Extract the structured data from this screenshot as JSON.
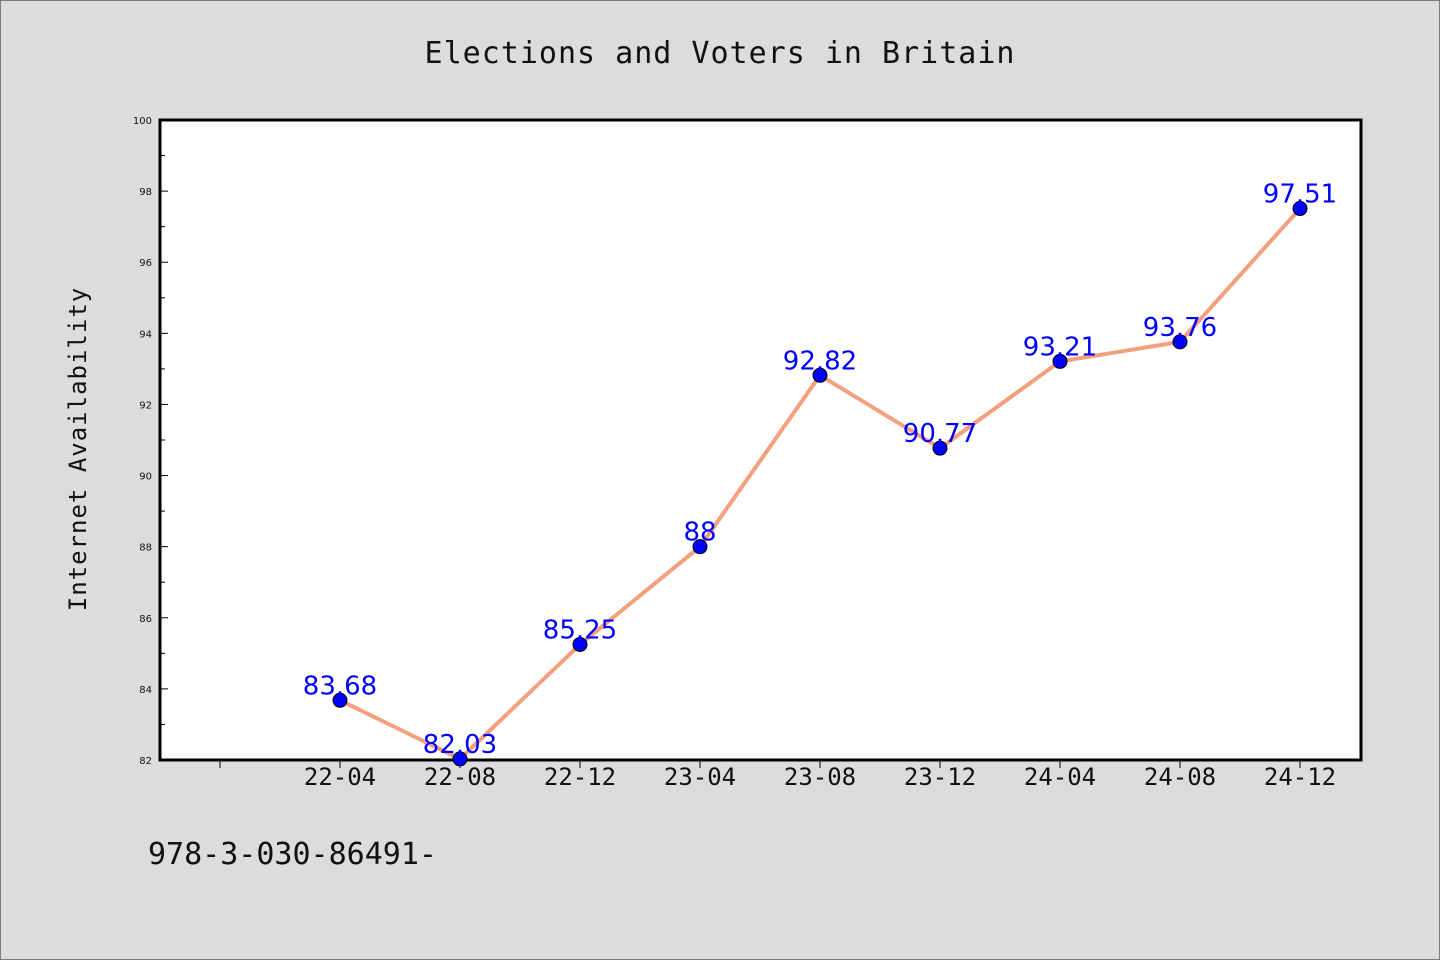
{
  "chart_data": {
    "type": "line",
    "title": "Elections and Voters in Britain",
    "xlabel": "",
    "ylabel": "Internet Availability",
    "categories": [
      "22-04",
      "22-08",
      "22-12",
      "23-04",
      "23-08",
      "23-12",
      "24-04",
      "24-08",
      "24-12"
    ],
    "series": [
      {
        "values": [
          83.68,
          82.03,
          85.25,
          88,
          92.82,
          90.77,
          93.21,
          93.76,
          97.51
        ],
        "labels": [
          "83.68",
          "82.03",
          "85.25",
          "88",
          "92.82",
          "90.77",
          "93.21",
          "93.76",
          "97.51"
        ],
        "line_color": "#f4a07e",
        "marker_color": "#0000ff"
      }
    ],
    "ylim": [
      82,
      100
    ],
    "yticks": [
      "82",
      "84",
      "86",
      "88",
      "90",
      "92",
      "94",
      "96",
      "98",
      "100"
    ],
    "grid": false,
    "legend": "none"
  },
  "footer_text": "978-3-030-86491-",
  "colors": {
    "background": "#dcdcdc",
    "plot_background": "#ffffff",
    "line": "#f4a07e",
    "marker": "#0000ff",
    "data_label": "#0000ff"
  }
}
